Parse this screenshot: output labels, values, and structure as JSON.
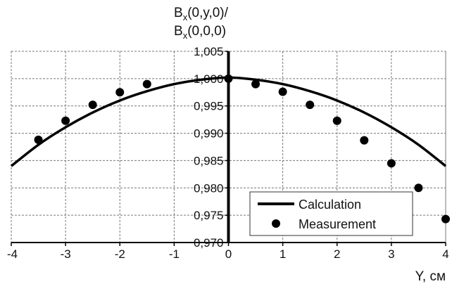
{
  "chart_data": {
    "type": "scatter",
    "ylabel": {
      "line1_main": "B",
      "line1_sub": "x",
      "line1_rest": "(0,y,0)/",
      "line2_main": "B",
      "line2_sub": "x",
      "line2_rest": "(0,0,0)"
    },
    "xlabel": "Y, см",
    "xlim": [
      -4,
      4
    ],
    "ylim": [
      0.97,
      1.005
    ],
    "x_ticks": [
      -4,
      -3,
      -2,
      -1,
      0,
      1,
      2,
      3,
      4
    ],
    "x_tick_labels": [
      "-4",
      "-3",
      "-2",
      "-1",
      "0",
      "1",
      "2",
      "3",
      "4"
    ],
    "y_ticks": [
      0.97,
      0.975,
      0.98,
      0.985,
      0.99,
      0.995,
      1.0,
      1.005
    ],
    "y_tick_labels": [
      "0,970",
      "0,975",
      "0,980",
      "0,985",
      "0,990",
      "0,995",
      "1,000",
      "1,005"
    ],
    "grid": true,
    "legend_position": "bottom-right",
    "series": [
      {
        "name": "Calculation",
        "kind": "line",
        "color": "#000000",
        "x": [
          -4.0,
          -3.5,
          -3.0,
          -2.5,
          -2.0,
          -1.5,
          -1.0,
          -0.5,
          0.0,
          0.5,
          1.0,
          1.5,
          2.0,
          2.5,
          3.0,
          3.5,
          4.0
        ],
        "y": [
          0.984,
          0.9879,
          0.9911,
          0.9938,
          0.996,
          0.9977,
          0.999,
          0.9998,
          1.0002,
          0.9998,
          0.999,
          0.9977,
          0.996,
          0.9938,
          0.9911,
          0.9879,
          0.984
        ]
      },
      {
        "name": "Measurement",
        "kind": "points",
        "color": "#000000",
        "x": [
          -3.5,
          -3.0,
          -2.5,
          -2.0,
          -1.5,
          0.0,
          0.5,
          1.0,
          1.5,
          2.0,
          2.5,
          3.0,
          3.5,
          4.0
        ],
        "y": [
          0.9888,
          0.9923,
          0.9952,
          0.9975,
          0.999,
          1.0,
          0.999,
          0.9976,
          0.9952,
          0.9923,
          0.9887,
          0.9845,
          0.98,
          0.9743
        ]
      }
    ]
  }
}
